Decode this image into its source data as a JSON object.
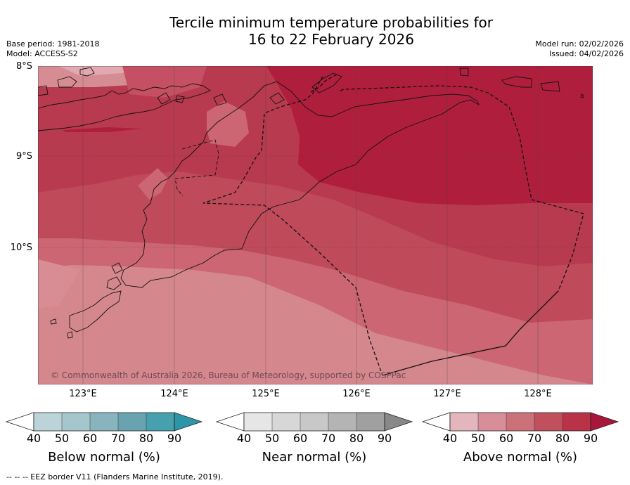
{
  "title": {
    "line1": "Tercile minimum temperature probabilities for",
    "line2": "16 to 22 February 2026"
  },
  "meta": {
    "base_period": "Base period: 1981-2018",
    "model": "Model: ACCESS-S2",
    "model_run": "Model run: 02/02/2026",
    "issued": "Issued: 04/02/2026"
  },
  "axes": {
    "lat_labels": [
      "8°S",
      "9°S",
      "10°S"
    ],
    "lon_labels": [
      "123°E",
      "124°E",
      "125°E",
      "126°E",
      "127°E",
      "128°E"
    ]
  },
  "map": {
    "copyright": "© Commonwealth of Australia 2026, Bureau of Meteorology, supported by COSPPac",
    "dominant_category": "Above normal",
    "colors": {
      "above_50": "#d5878e",
      "above_60": "#cb6672",
      "above_70": "#be4a5a",
      "above_80": "#b83a4e",
      "above_90": "#b01e3e"
    }
  },
  "colorbars": [
    {
      "label": "Below normal (%)",
      "ticks": [
        "40",
        "50",
        "60",
        "70",
        "80",
        "90"
      ],
      "colors": [
        "#bcd3d9",
        "#a4c6cc",
        "#88b4bd",
        "#68a3af",
        "#46a0ae",
        "#2c96a8"
      ]
    },
    {
      "label": "Near normal (%)",
      "ticks": [
        "40",
        "50",
        "60",
        "70",
        "80",
        "90"
      ],
      "colors": [
        "#e6e6e6",
        "#d7d7d7",
        "#c8c8c8",
        "#b4b4b4",
        "#a0a0a0",
        "#888888"
      ]
    },
    {
      "label": "Above normal (%)",
      "ticks": [
        "40",
        "50",
        "60",
        "70",
        "80",
        "90"
      ],
      "colors": [
        "#e2b6bc",
        "#d88e98",
        "#cc7079",
        "#c0505e",
        "#b83248",
        "#a8173a"
      ]
    }
  ],
  "footnote": "--  --  -- EEZ border V11 (Flanders Marine Institute, 2019)."
}
